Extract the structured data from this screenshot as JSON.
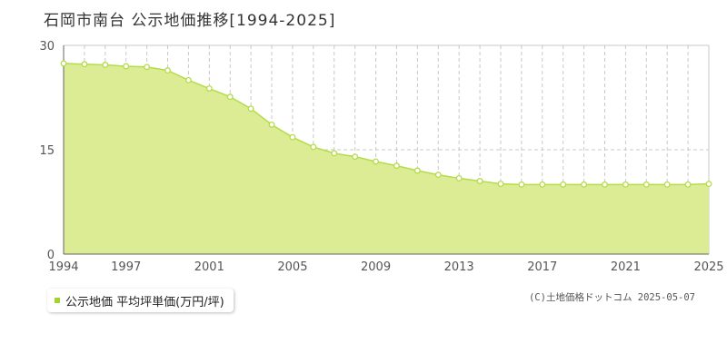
{
  "title": "石岡市南台 公示地価推移[1994-2025]",
  "legend_label": "公示地価 平均坪単価(万円/坪)",
  "credit": "(C)土地価格ドットコム 2025-05-07",
  "colors": {
    "area_fill": "#dbec94",
    "line": "#b5dc4a",
    "marker_stroke": "#b5dc4a",
    "marker_fill": "#ffffff",
    "grid": "#c8c8c8",
    "legend_marker": "#a3d32f"
  },
  "chart_data": {
    "type": "area",
    "title": "石岡市南台 公示地価推移[1994-2025]",
    "xlabel": "",
    "ylabel": "",
    "ylim": [
      0,
      30
    ],
    "xlim": [
      1994,
      2025
    ],
    "yticks": [
      0,
      15,
      30
    ],
    "xticks": [
      1994,
      1997,
      2001,
      2005,
      2009,
      2013,
      2017,
      2021,
      2025
    ],
    "grid": true,
    "legend_position": "bottom-left",
    "series": [
      {
        "name": "公示地価 平均坪単価(万円/坪)",
        "x": [
          1994,
          1995,
          1996,
          1997,
          1998,
          1999,
          2000,
          2001,
          2002,
          2003,
          2004,
          2005,
          2006,
          2007,
          2008,
          2009,
          2010,
          2011,
          2012,
          2013,
          2014,
          2015,
          2016,
          2017,
          2018,
          2019,
          2020,
          2021,
          2022,
          2023,
          2024,
          2025
        ],
        "y": [
          27.4,
          27.3,
          27.2,
          27.0,
          26.9,
          26.4,
          25.0,
          23.8,
          22.6,
          20.9,
          18.6,
          16.8,
          15.4,
          14.5,
          14.0,
          13.3,
          12.7,
          12.0,
          11.4,
          10.9,
          10.5,
          10.1,
          10.0,
          10.0,
          10.0,
          10.0,
          10.0,
          10.0,
          10.0,
          10.0,
          10.0,
          10.1
        ]
      }
    ]
  }
}
